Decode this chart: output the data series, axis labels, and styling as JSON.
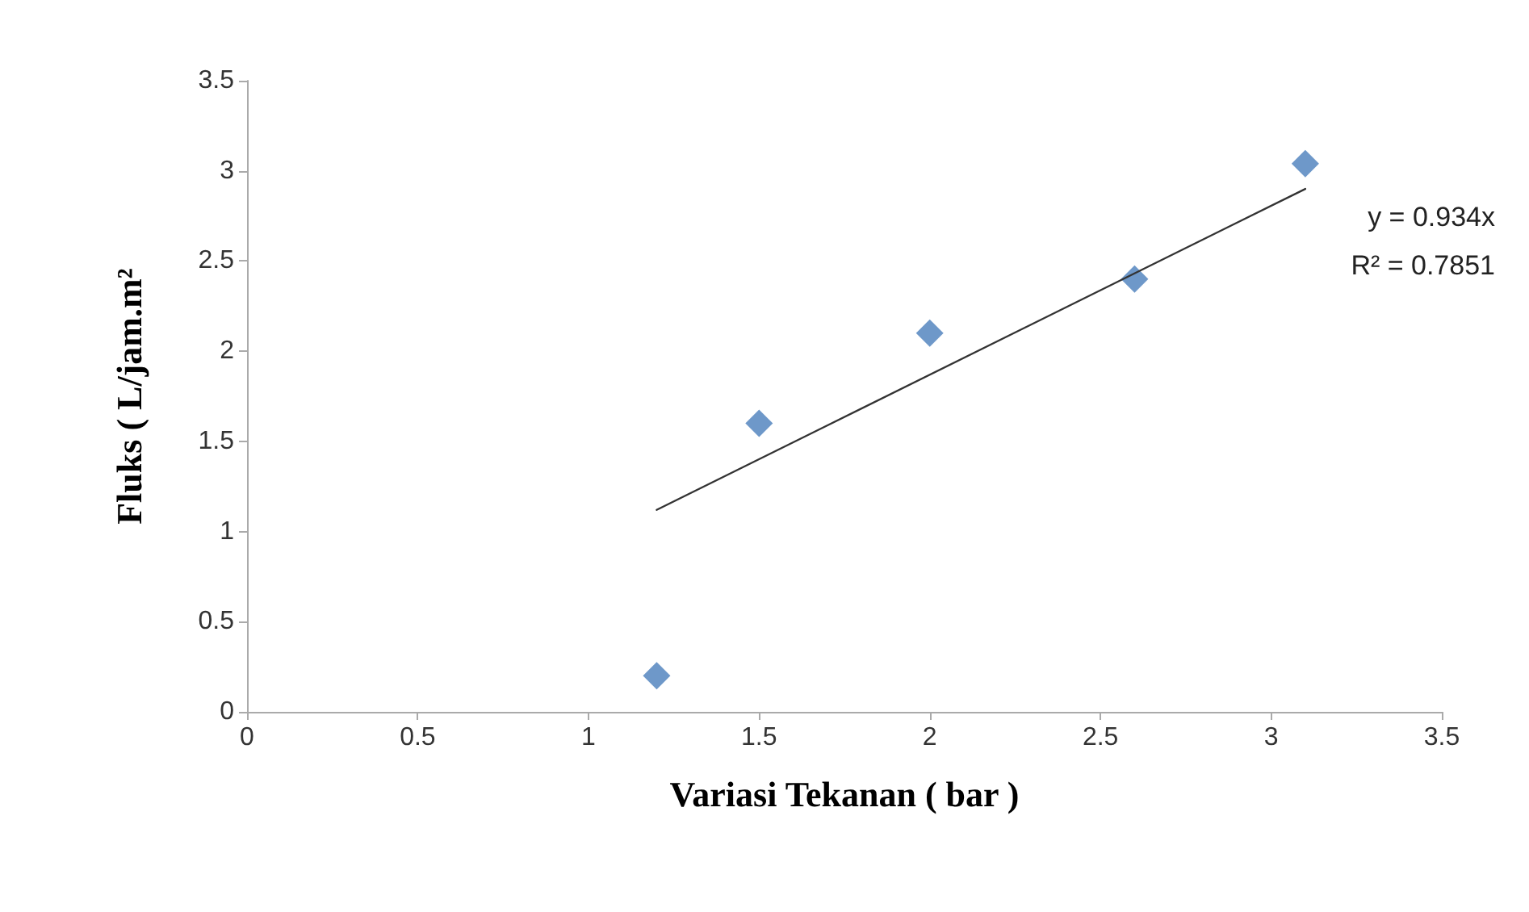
{
  "chart_data": {
    "type": "scatter",
    "xlabel": "Variasi Tekanan ( bar )",
    "ylabel": "Fluks ( L/jam.m²",
    "x": [
      1.2,
      1.5,
      2,
      2.6,
      3.1
    ],
    "series": [
      {
        "color": "#4a7ebb",
        "marker": "diamond",
        "values": [
          0.2,
          1.6,
          2.1,
          2.4,
          3.04
        ]
      },
      {
        "type": "line",
        "color": "#333333",
        "marker": "none",
        "line_style": "solid",
        "x": [
          1.2,
          3.1
        ],
        "values": [
          1.12,
          2.9
        ]
      }
    ],
    "xlim": [
      0,
      3.5
    ],
    "xticks": [
      0,
      0.5,
      1,
      1.5,
      2,
      2.5,
      3,
      3.5
    ],
    "ylim": [
      0,
      3.5
    ],
    "yticks": [
      0,
      0.5,
      1,
      1.5,
      2,
      2.5,
      3,
      3.5
    ],
    "grid": false,
    "annotations": [
      "y = 0.934x",
      "R² = 0.7851"
    ]
  }
}
